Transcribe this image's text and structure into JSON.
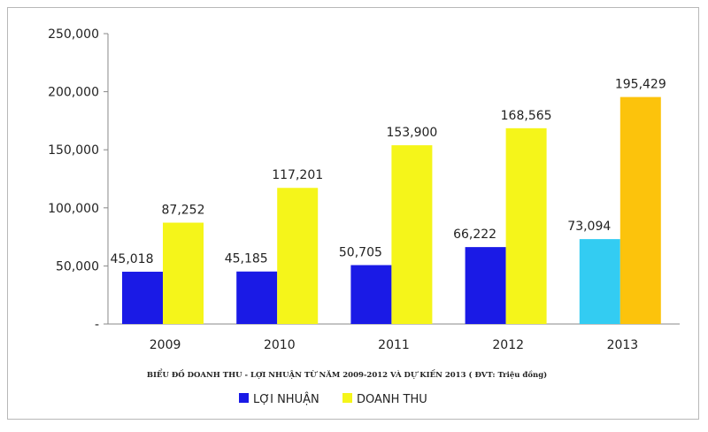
{
  "chart_data": {
    "type": "bar",
    "title": "BIỂU ĐỒ DOANH THU - LỢI NHUẬN TỪ NĂM 2009-2012 VÀ DỰ KIẾN 2013 ( ĐVT: Triệu đồng)",
    "categories": [
      "2009",
      "2010",
      "2011",
      "2012",
      "2013"
    ],
    "series": [
      {
        "name": "LỢI NHUẬN",
        "values": [
          45018,
          45185,
          50705,
          66222,
          73094
        ],
        "labels": [
          "45,018",
          "45,185",
          "50,705",
          "66,222",
          "73,094"
        ],
        "color": "#1a1ae6",
        "highlight_color": "#33ccf2"
      },
      {
        "name": "DOANH THU",
        "values": [
          87252,
          117201,
          153900,
          168565,
          195429
        ],
        "labels": [
          "87,252",
          "117,201",
          "153,900",
          "168,565",
          "195,429"
        ],
        "color": "#f5f51a",
        "highlight_color": "#fcc30c"
      }
    ],
    "highlight_category_index": 4,
    "ylim": [
      0,
      250000
    ],
    "yticks": [
      0,
      50000,
      100000,
      150000,
      200000,
      250000
    ],
    "ytick_labels": [
      "-",
      "50,000",
      "100,000",
      "150,000",
      "200,000",
      "250,000"
    ],
    "grid": false,
    "legend_position": "bottom"
  }
}
